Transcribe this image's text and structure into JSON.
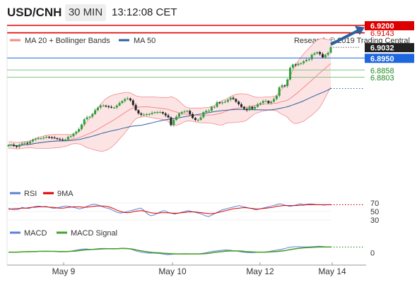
{
  "header": {
    "symbol": "USD/CNH",
    "timeframe": "30 MIN",
    "time": "13:12:08 CET"
  },
  "colors": {
    "bollinger": "#f08a8a",
    "bollinger_fill": "#fde4e4",
    "ma50": "#2f5f9e",
    "candle_up": "#2e9e3e",
    "candle_down": "#222222",
    "resistance": "#dd0000",
    "pivot": "#1d66e0",
    "support": "#7fc77f",
    "rsi": "#5b7fd6",
    "rsi_ma": "#dd0000",
    "macd": "#5b7fd6",
    "macd_signal": "#4aa02c",
    "arrow": "#2e5f9e"
  },
  "chart_data": [
    {
      "type": "candlestick",
      "legend": [
        "MA 20 + Bollinger Bands",
        "MA 50"
      ],
      "copyright": "Research © 2019 Trading Central",
      "x_ticks": [
        "May 9",
        "May 10",
        "May 12",
        "May 14"
      ],
      "ylim": [
        6.8,
        6.92
      ],
      "levels": [
        {
          "label": "6.9200",
          "value": 6.92,
          "kind": "resistance"
        },
        {
          "label": "6.9143",
          "value": 6.9143,
          "kind": "resistance"
        },
        {
          "label": "6.9032",
          "value": 6.9032,
          "kind": "last"
        },
        {
          "label": "6.8950",
          "value": 6.895,
          "kind": "pivot"
        },
        {
          "label": "6.8858",
          "value": 6.8858,
          "kind": "support"
        },
        {
          "label": "6.8803",
          "value": 6.8803,
          "kind": "support"
        }
      ],
      "close_series": [
        6.8282,
        6.8285,
        6.8275,
        6.8268,
        6.8285,
        6.8295,
        6.83,
        6.8295,
        6.831,
        6.8325,
        6.833,
        6.8335,
        6.8335,
        6.834,
        6.8345,
        6.8342,
        6.834,
        6.8335,
        6.833,
        6.8325,
        6.832,
        6.8325,
        6.8345,
        6.835,
        6.837,
        6.8385,
        6.8405,
        6.844,
        6.848,
        6.8495,
        6.85,
        6.852,
        6.855,
        6.857,
        6.8585,
        6.8585,
        6.858,
        6.8575,
        6.857,
        6.857,
        6.8585,
        6.8605,
        6.862,
        6.8635,
        6.864,
        6.8625,
        6.859,
        6.855,
        6.8525,
        6.8515,
        6.8515,
        6.852,
        6.852,
        6.853,
        6.8535,
        6.8535,
        6.8535,
        6.8525,
        6.851,
        6.8495,
        6.8435,
        6.8475,
        6.85,
        6.8525,
        6.8535,
        6.854,
        6.8545,
        6.852,
        6.849,
        6.8475,
        6.8475,
        6.8495,
        6.8535,
        6.8545,
        6.8545,
        6.8575,
        6.8575,
        6.861,
        6.8605,
        6.861,
        6.8615,
        6.863,
        6.8645,
        6.8635,
        6.8615,
        6.8595,
        6.8575,
        6.856,
        6.855,
        6.8575,
        6.856,
        6.8575,
        6.8595,
        6.8605,
        6.862,
        6.862,
        6.8605,
        6.8615,
        6.8635,
        6.866,
        6.8725,
        6.874,
        6.8735,
        6.8785,
        6.8875,
        6.89,
        6.8895,
        6.8905,
        6.891,
        6.8925,
        6.8935,
        6.894,
        6.8975,
        6.8985,
        6.8995,
        6.898,
        6.8955,
        6.8975,
        6.899,
        6.9032
      ]
    },
    {
      "type": "line",
      "legend": [
        "RSI",
        "9MA"
      ],
      "ylim": [
        20,
        80
      ],
      "y_ticks": [
        "70",
        "50",
        "30"
      ],
      "series": [
        {
          "name": "RSI",
          "values": [
            58,
            55,
            54,
            55,
            60,
            58,
            57,
            60,
            62,
            63,
            61,
            62,
            60,
            58,
            58,
            60,
            62,
            63,
            62,
            60,
            58,
            56,
            58,
            62,
            65,
            67,
            66,
            64,
            60,
            58,
            56,
            52,
            48,
            46,
            48,
            50,
            52,
            54,
            56,
            58,
            52,
            44,
            40,
            42,
            46,
            50,
            52,
            48,
            46,
            44,
            46,
            48,
            50,
            52,
            50,
            48,
            46,
            44,
            40,
            38,
            42,
            46,
            50,
            54,
            56,
            58,
            60,
            62,
            64,
            62,
            60,
            58,
            56,
            54,
            56,
            58,
            60,
            62,
            64,
            66,
            68,
            66,
            64,
            62,
            64,
            66,
            68,
            66,
            67,
            68,
            67,
            66,
            66,
            65,
            66,
            66
          ]
        },
        {
          "name": "9MA",
          "values": [
            55,
            56,
            57,
            57,
            58,
            58,
            59,
            60,
            60,
            61,
            61,
            61,
            60,
            60,
            59,
            58,
            58,
            59,
            60,
            61,
            61,
            61,
            60,
            60,
            61,
            62,
            63,
            63,
            63,
            62,
            60,
            57,
            53,
            50,
            48,
            47,
            48,
            50,
            51,
            52,
            51,
            49,
            47,
            46,
            46,
            47,
            47,
            47,
            46,
            46,
            46,
            47,
            48,
            49,
            49,
            49,
            48,
            47,
            46,
            45,
            45,
            46,
            48,
            50,
            52,
            54,
            56,
            57,
            58,
            59,
            59,
            58,
            57,
            56,
            56,
            57,
            58,
            59,
            60,
            62,
            63,
            64,
            64,
            64,
            64,
            64,
            65,
            65,
            66,
            66,
            66,
            66,
            66,
            66,
            66,
            66
          ]
        }
      ]
    },
    {
      "type": "line",
      "legend": [
        "MACD",
        "MACD Signal"
      ],
      "ylim": [
        -0.003,
        0.006
      ],
      "y_ticks": [
        "0"
      ],
      "series": [
        {
          "name": "MACD",
          "values": [
            0.0002,
            0.0003,
            0.0003,
            0.0004,
            0.0005,
            0.0006,
            0.0006,
            0.0007,
            0.0007,
            0.0008,
            0.0008,
            0.0007,
            0.0006,
            0.0005,
            0.0005,
            0.0006,
            0.0008,
            0.0011,
            0.0014,
            0.0017,
            0.0018,
            0.0016,
            0.0017,
            0.0019,
            0.002,
            0.002,
            0.0019,
            0.0018,
            0.0019,
            0.0021,
            0.0021,
            0.0019,
            0.0014,
            0.0008,
            0.0004,
            0.0001,
            -0.0001,
            -0.0001,
            -0.0002,
            -0.0003,
            -0.0006,
            -0.0008,
            -0.0007,
            -0.0006,
            -0.0005,
            -0.0004,
            -0.0004,
            -0.0006,
            -0.0006,
            -0.0005,
            -0.0002,
            0.0001,
            0.0005,
            0.0008,
            0.001,
            0.0012,
            0.0013,
            0.0012,
            0.001,
            0.0008,
            0.0004,
            0.0002,
            0.0001,
            0.0001,
            0.0002,
            0.0003,
            0.0004,
            0.0006,
            0.0009,
            0.0012,
            0.0015,
            0.0019,
            0.0024,
            0.0027,
            0.0028,
            0.0028,
            0.0027,
            0.0027,
            0.0028,
            0.0029,
            0.003,
            0.0029,
            0.0027,
            0.0026
          ]
        },
        {
          "name": "MACD Signal",
          "values": [
            0.0003,
            0.0003,
            0.0003,
            0.0004,
            0.0005,
            0.0005,
            0.0006,
            0.0006,
            0.0007,
            0.0007,
            0.0007,
            0.0007,
            0.0007,
            0.0006,
            0.0006,
            0.0006,
            0.0007,
            0.0008,
            0.001,
            0.0012,
            0.0014,
            0.0015,
            0.0016,
            0.0017,
            0.0018,
            0.0019,
            0.0019,
            0.0019,
            0.0019,
            0.002,
            0.002,
            0.0019,
            0.0017,
            0.0013,
            0.001,
            0.0007,
            0.0004,
            0.0002,
            0.0001,
            0.0,
            -0.0002,
            -0.0003,
            -0.0004,
            -0.0005,
            -0.0005,
            -0.0005,
            -0.0005,
            -0.0005,
            -0.0005,
            -0.0005,
            -0.0004,
            -0.0003,
            -0.0001,
            0.0002,
            0.0004,
            0.0006,
            0.0008,
            0.0009,
            0.0009,
            0.0009,
            0.0008,
            0.0006,
            0.0005,
            0.0004,
            0.0003,
            0.0003,
            0.0003,
            0.0004,
            0.0005,
            0.0006,
            0.0008,
            0.001,
            0.0013,
            0.0016,
            0.0019,
            0.0021,
            0.0023,
            0.0024,
            0.0025,
            0.0026,
            0.0027,
            0.0027,
            0.0027,
            0.0027
          ]
        }
      ]
    }
  ]
}
